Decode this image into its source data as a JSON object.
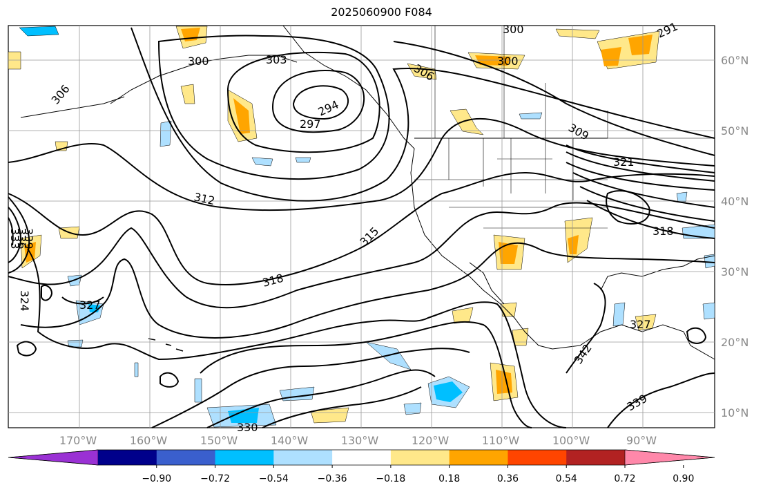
{
  "title": "2025060900 F084",
  "lat_labels": [
    "60°N",
    "50°N",
    "40°N",
    "30°N",
    "20°N",
    "10°N"
  ],
  "lon_labels": [
    "170°W",
    "160°W",
    "150°W",
    "140°W",
    "130°W",
    "120°W",
    "110°W",
    "100°W",
    "90°W"
  ],
  "colorbar": {
    "colors": [
      "#9a31d4",
      "#00008b",
      "#3a5fcd",
      "#00bfff",
      "#aee0ff",
      "#ffffff",
      "#ffe88a",
      "#ffa500",
      "#ff4500",
      "#b22222",
      "#ff88aa"
    ],
    "ticks": [
      "−0.90",
      "−0.72",
      "−0.54",
      "−0.36",
      "−0.18",
      "0.18",
      "0.36",
      "0.54",
      "0.72",
      "0.90"
    ]
  },
  "contour_labels": [
    "300",
    "303",
    "306",
    "300",
    "306",
    "297",
    "294",
    "309",
    "312",
    "315",
    "318",
    "321",
    "318",
    "324",
    "327",
    "333",
    "336",
    "339",
    "342",
    "327",
    "339",
    "330",
    "291",
    "300"
  ]
}
